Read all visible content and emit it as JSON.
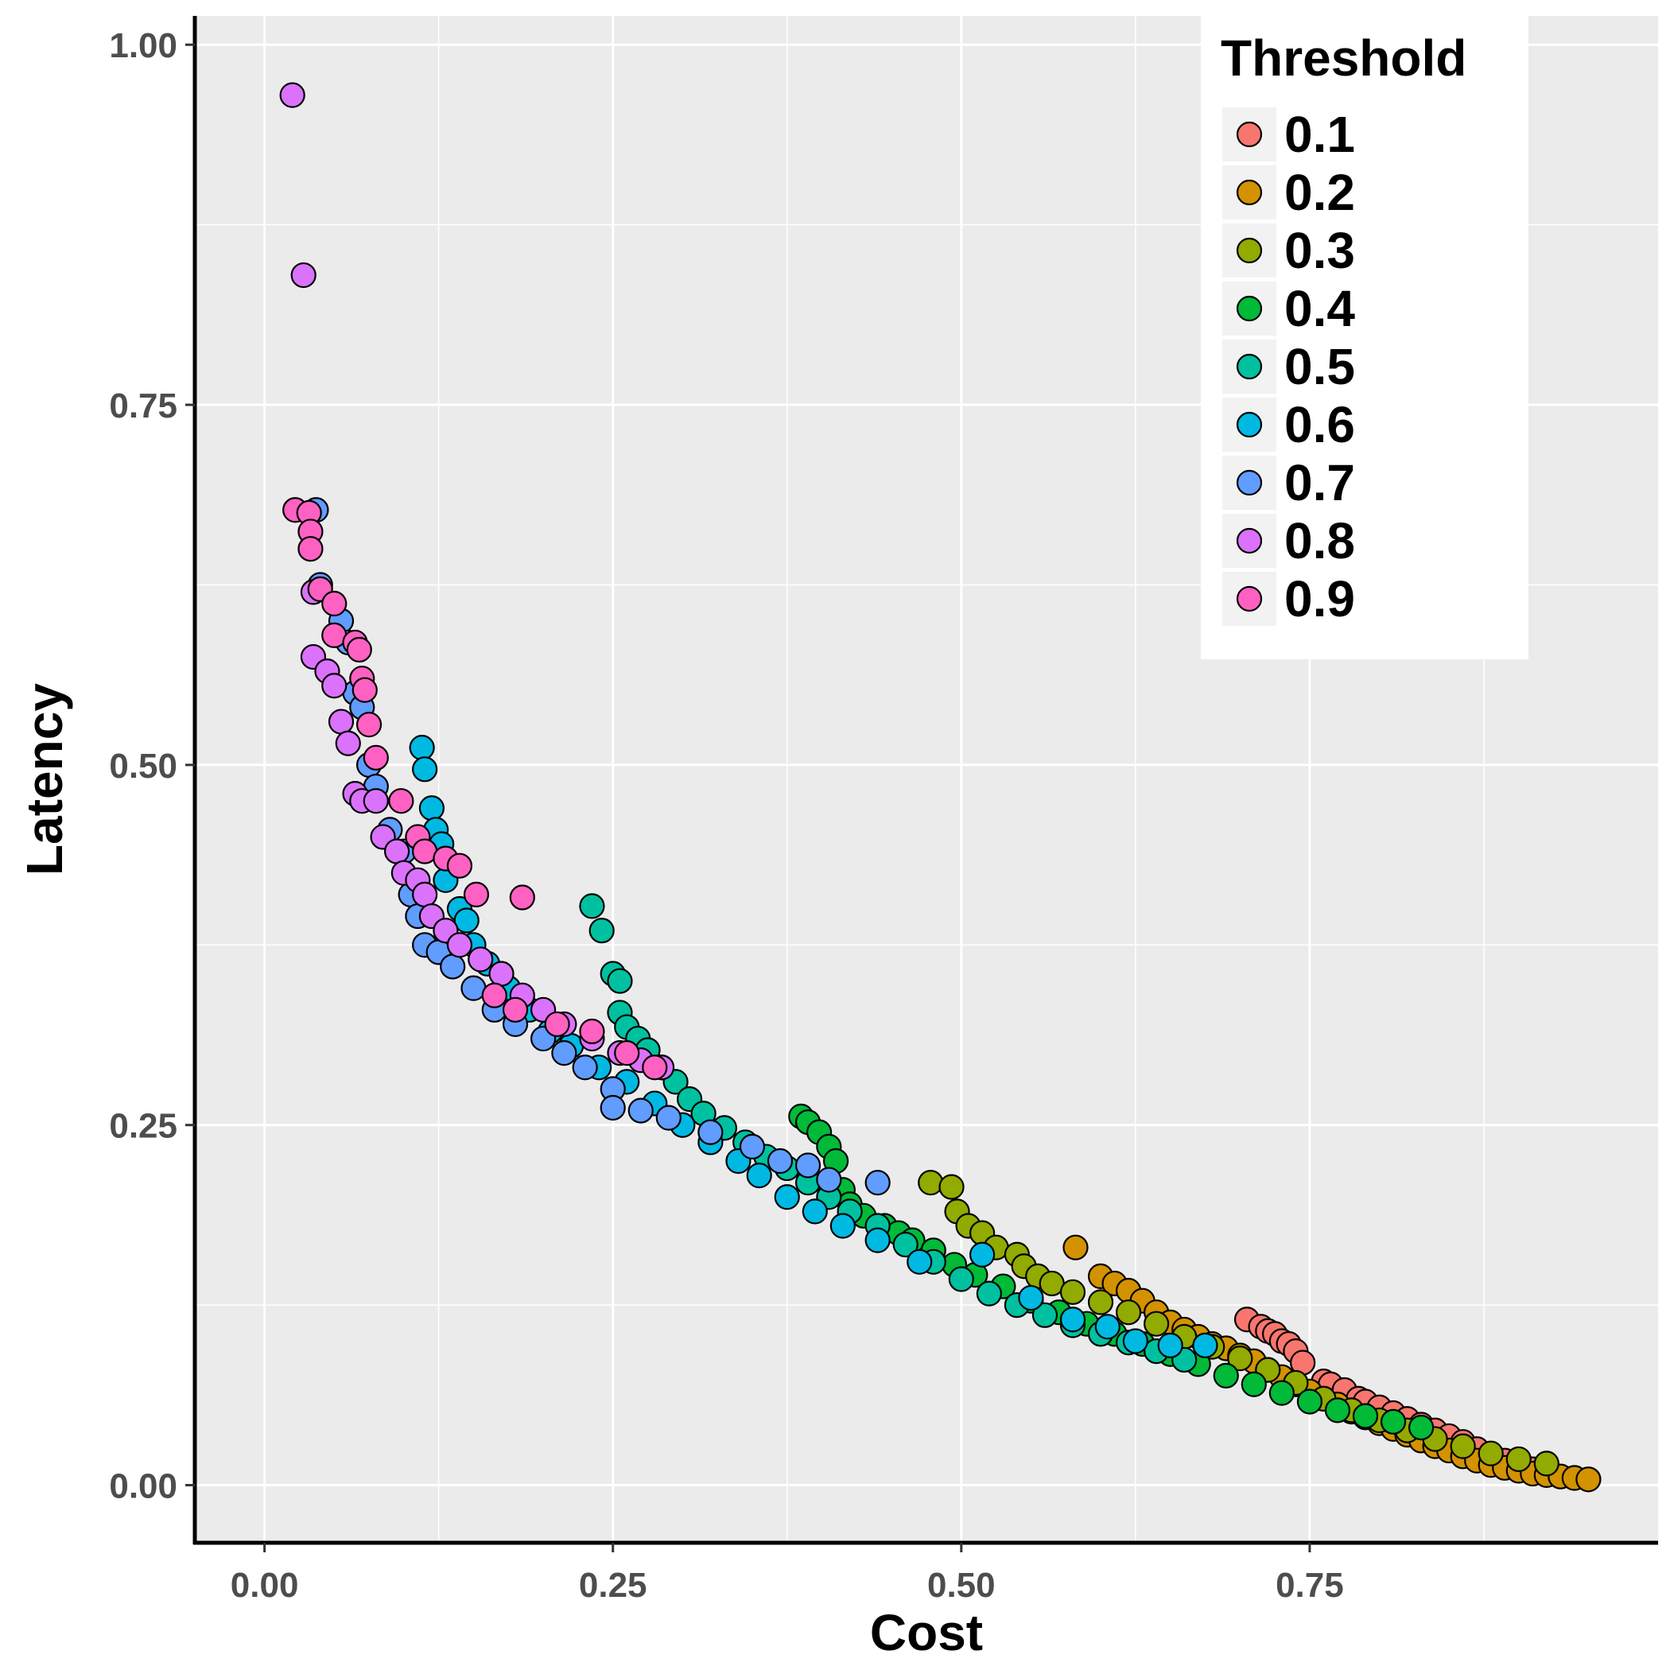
{
  "chart_data": {
    "type": "scatter",
    "xlabel": "Cost",
    "ylabel": "Latency",
    "xlim": [
      -0.05,
      1.0
    ],
    "ylim": [
      -0.04,
      1.02
    ],
    "x_ticks": [
      {
        "value": 0.0,
        "label": "0.00"
      },
      {
        "value": 0.25,
        "label": "0.25"
      },
      {
        "value": 0.5,
        "label": "0.50"
      },
      {
        "value": 0.75,
        "label": "0.75"
      }
    ],
    "y_ticks": [
      {
        "value": 0.0,
        "label": "0.00"
      },
      {
        "value": 0.25,
        "label": "0.25"
      },
      {
        "value": 0.5,
        "label": "0.50"
      },
      {
        "value": 0.75,
        "label": "0.75"
      },
      {
        "value": 1.0,
        "label": "1.00"
      }
    ],
    "grid": true,
    "legend": {
      "title": "Threshold",
      "position": "top-right"
    },
    "series": [
      {
        "name": "0.1",
        "color": "#F8766D",
        "points": [
          [
            0.705,
            0.115
          ],
          [
            0.715,
            0.11
          ],
          [
            0.72,
            0.107
          ],
          [
            0.725,
            0.105
          ],
          [
            0.73,
            0.1
          ],
          [
            0.735,
            0.098
          ],
          [
            0.74,
            0.093
          ],
          [
            0.745,
            0.085
          ],
          [
            0.76,
            0.072
          ],
          [
            0.765,
            0.07
          ],
          [
            0.775,
            0.066
          ],
          [
            0.785,
            0.06
          ],
          [
            0.79,
            0.058
          ],
          [
            0.8,
            0.054
          ],
          [
            0.81,
            0.05
          ],
          [
            0.82,
            0.046
          ],
          [
            0.83,
            0.042
          ],
          [
            0.84,
            0.038
          ],
          [
            0.85,
            0.034
          ],
          [
            0.86,
            0.03
          ],
          [
            0.87,
            0.025
          ],
          [
            0.88,
            0.021
          ],
          [
            0.89,
            0.017
          ],
          [
            0.9,
            0.014
          ],
          [
            0.91,
            0.011
          ],
          [
            0.92,
            0.008
          ],
          [
            0.93,
            0.006
          ],
          [
            0.94,
            0.005
          ],
          [
            0.95,
            0.004
          ]
        ]
      },
      {
        "name": "0.2",
        "color": "#D39200",
        "points": [
          [
            0.582,
            0.165
          ],
          [
            0.6,
            0.145
          ],
          [
            0.61,
            0.14
          ],
          [
            0.62,
            0.135
          ],
          [
            0.63,
            0.128
          ],
          [
            0.64,
            0.12
          ],
          [
            0.65,
            0.113
          ],
          [
            0.66,
            0.108
          ],
          [
            0.67,
            0.103
          ],
          [
            0.68,
            0.098
          ],
          [
            0.69,
            0.095
          ],
          [
            0.7,
            0.09
          ],
          [
            0.71,
            0.086
          ],
          [
            0.72,
            0.08
          ],
          [
            0.73,
            0.075
          ],
          [
            0.74,
            0.07
          ],
          [
            0.75,
            0.065
          ],
          [
            0.76,
            0.06
          ],
          [
            0.77,
            0.056
          ],
          [
            0.78,
            0.051
          ],
          [
            0.79,
            0.047
          ],
          [
            0.8,
            0.043
          ],
          [
            0.81,
            0.039
          ],
          [
            0.82,
            0.035
          ],
          [
            0.83,
            0.031
          ],
          [
            0.84,
            0.027
          ],
          [
            0.85,
            0.024
          ],
          [
            0.86,
            0.02
          ],
          [
            0.87,
            0.017
          ],
          [
            0.88,
            0.014
          ],
          [
            0.89,
            0.012
          ],
          [
            0.9,
            0.01
          ],
          [
            0.91,
            0.008
          ],
          [
            0.92,
            0.007
          ],
          [
            0.93,
            0.006
          ],
          [
            0.94,
            0.005
          ],
          [
            0.95,
            0.004
          ]
        ]
      },
      {
        "name": "0.3",
        "color": "#93AA00",
        "points": [
          [
            0.478,
            0.21
          ],
          [
            0.493,
            0.207
          ],
          [
            0.497,
            0.19
          ],
          [
            0.505,
            0.18
          ],
          [
            0.515,
            0.175
          ],
          [
            0.525,
            0.165
          ],
          [
            0.54,
            0.16
          ],
          [
            0.545,
            0.152
          ],
          [
            0.555,
            0.145
          ],
          [
            0.565,
            0.14
          ],
          [
            0.58,
            0.134
          ],
          [
            0.6,
            0.127
          ],
          [
            0.62,
            0.12
          ],
          [
            0.64,
            0.112
          ],
          [
            0.66,
            0.103
          ],
          [
            0.68,
            0.096
          ],
          [
            0.7,
            0.088
          ],
          [
            0.72,
            0.08
          ],
          [
            0.74,
            0.071
          ],
          [
            0.76,
            0.06
          ],
          [
            0.78,
            0.052
          ],
          [
            0.8,
            0.045
          ],
          [
            0.82,
            0.038
          ],
          [
            0.84,
            0.032
          ],
          [
            0.86,
            0.027
          ],
          [
            0.88,
            0.022
          ],
          [
            0.9,
            0.018
          ],
          [
            0.92,
            0.015
          ]
        ]
      },
      {
        "name": "0.4",
        "color": "#00BA38",
        "points": [
          [
            0.385,
            0.256
          ],
          [
            0.39,
            0.252
          ],
          [
            0.398,
            0.245
          ],
          [
            0.405,
            0.235
          ],
          [
            0.41,
            0.225
          ],
          [
            0.415,
            0.205
          ],
          [
            0.42,
            0.195
          ],
          [
            0.43,
            0.187
          ],
          [
            0.445,
            0.18
          ],
          [
            0.455,
            0.175
          ],
          [
            0.465,
            0.17
          ],
          [
            0.48,
            0.163
          ],
          [
            0.495,
            0.153
          ],
          [
            0.51,
            0.146
          ],
          [
            0.53,
            0.138
          ],
          [
            0.55,
            0.128
          ],
          [
            0.57,
            0.12
          ],
          [
            0.59,
            0.112
          ],
          [
            0.61,
            0.105
          ],
          [
            0.63,
            0.098
          ],
          [
            0.65,
            0.091
          ],
          [
            0.67,
            0.084
          ],
          [
            0.69,
            0.076
          ],
          [
            0.71,
            0.07
          ],
          [
            0.73,
            0.064
          ],
          [
            0.75,
            0.058
          ],
          [
            0.77,
            0.052
          ],
          [
            0.79,
            0.048
          ],
          [
            0.81,
            0.044
          ],
          [
            0.83,
            0.04
          ]
        ]
      },
      {
        "name": "0.5",
        "color": "#00C19F",
        "points": [
          [
            0.235,
            0.402
          ],
          [
            0.242,
            0.385
          ],
          [
            0.25,
            0.355
          ],
          [
            0.255,
            0.35
          ],
          [
            0.255,
            0.328
          ],
          [
            0.26,
            0.318
          ],
          [
            0.268,
            0.31
          ],
          [
            0.275,
            0.302
          ],
          [
            0.285,
            0.29
          ],
          [
            0.295,
            0.28
          ],
          [
            0.305,
            0.268
          ],
          [
            0.315,
            0.258
          ],
          [
            0.33,
            0.248
          ],
          [
            0.345,
            0.238
          ],
          [
            0.36,
            0.228
          ],
          [
            0.375,
            0.22
          ],
          [
            0.39,
            0.21
          ],
          [
            0.405,
            0.2
          ],
          [
            0.42,
            0.19
          ],
          [
            0.44,
            0.18
          ],
          [
            0.46,
            0.167
          ],
          [
            0.48,
            0.155
          ],
          [
            0.5,
            0.143
          ],
          [
            0.52,
            0.133
          ],
          [
            0.54,
            0.125
          ],
          [
            0.56,
            0.118
          ],
          [
            0.58,
            0.111
          ],
          [
            0.6,
            0.105
          ],
          [
            0.62,
            0.099
          ],
          [
            0.64,
            0.093
          ],
          [
            0.66,
            0.087
          ]
        ]
      },
      {
        "name": "0.6",
        "color": "#00B9E3",
        "points": [
          [
            0.113,
            0.512
          ],
          [
            0.115,
            0.497
          ],
          [
            0.12,
            0.47
          ],
          [
            0.123,
            0.455
          ],
          [
            0.127,
            0.445
          ],
          [
            0.13,
            0.42
          ],
          [
            0.14,
            0.4
          ],
          [
            0.145,
            0.392
          ],
          [
            0.15,
            0.375
          ],
          [
            0.16,
            0.362
          ],
          [
            0.175,
            0.345
          ],
          [
            0.19,
            0.33
          ],
          [
            0.205,
            0.315
          ],
          [
            0.22,
            0.305
          ],
          [
            0.24,
            0.29
          ],
          [
            0.26,
            0.28
          ],
          [
            0.28,
            0.265
          ],
          [
            0.3,
            0.25
          ],
          [
            0.32,
            0.238
          ],
          [
            0.34,
            0.225
          ],
          [
            0.355,
            0.215
          ],
          [
            0.375,
            0.2
          ],
          [
            0.395,
            0.19
          ],
          [
            0.415,
            0.18
          ],
          [
            0.44,
            0.17
          ],
          [
            0.47,
            0.155
          ],
          [
            0.515,
            0.16
          ],
          [
            0.55,
            0.13
          ],
          [
            0.58,
            0.115
          ],
          [
            0.605,
            0.11
          ],
          [
            0.625,
            0.1
          ],
          [
            0.65,
            0.097
          ],
          [
            0.675,
            0.097
          ]
        ]
      },
      {
        "name": "0.7",
        "color": "#619CFF",
        "points": [
          [
            0.037,
            0.677
          ],
          [
            0.04,
            0.625
          ],
          [
            0.055,
            0.6
          ],
          [
            0.06,
            0.585
          ],
          [
            0.065,
            0.55
          ],
          [
            0.07,
            0.54
          ],
          [
            0.075,
            0.5
          ],
          [
            0.08,
            0.485
          ],
          [
            0.09,
            0.455
          ],
          [
            0.1,
            0.44
          ],
          [
            0.105,
            0.41
          ],
          [
            0.11,
            0.395
          ],
          [
            0.115,
            0.375
          ],
          [
            0.125,
            0.37
          ],
          [
            0.135,
            0.36
          ],
          [
            0.15,
            0.345
          ],
          [
            0.165,
            0.33
          ],
          [
            0.18,
            0.32
          ],
          [
            0.2,
            0.31
          ],
          [
            0.215,
            0.3
          ],
          [
            0.23,
            0.29
          ],
          [
            0.25,
            0.275
          ],
          [
            0.25,
            0.262
          ],
          [
            0.27,
            0.26
          ],
          [
            0.29,
            0.255
          ],
          [
            0.32,
            0.245
          ],
          [
            0.35,
            0.235
          ],
          [
            0.37,
            0.225
          ],
          [
            0.39,
            0.222
          ],
          [
            0.405,
            0.212
          ],
          [
            0.44,
            0.21
          ]
        ]
      },
      {
        "name": "0.8",
        "color": "#DB72FB",
        "points": [
          [
            0.02,
            0.965
          ],
          [
            0.028,
            0.84
          ],
          [
            0.035,
            0.62
          ],
          [
            0.035,
            0.575
          ],
          [
            0.045,
            0.565
          ],
          [
            0.05,
            0.555
          ],
          [
            0.055,
            0.53
          ],
          [
            0.06,
            0.515
          ],
          [
            0.065,
            0.48
          ],
          [
            0.07,
            0.475
          ],
          [
            0.08,
            0.475
          ],
          [
            0.085,
            0.45
          ],
          [
            0.095,
            0.44
          ],
          [
            0.1,
            0.425
          ],
          [
            0.11,
            0.42
          ],
          [
            0.115,
            0.41
          ],
          [
            0.12,
            0.395
          ],
          [
            0.13,
            0.385
          ],
          [
            0.14,
            0.375
          ],
          [
            0.155,
            0.365
          ],
          [
            0.17,
            0.355
          ],
          [
            0.185,
            0.34
          ],
          [
            0.2,
            0.33
          ],
          [
            0.215,
            0.32
          ],
          [
            0.235,
            0.31
          ],
          [
            0.255,
            0.3
          ],
          [
            0.27,
            0.295
          ],
          [
            0.285,
            0.29
          ]
        ]
      },
      {
        "name": "0.9",
        "color": "#FF61C3",
        "points": [
          [
            0.022,
            0.677
          ],
          [
            0.032,
            0.675
          ],
          [
            0.033,
            0.662
          ],
          [
            0.033,
            0.65
          ],
          [
            0.04,
            0.622
          ],
          [
            0.05,
            0.612
          ],
          [
            0.05,
            0.59
          ],
          [
            0.065,
            0.585
          ],
          [
            0.068,
            0.58
          ],
          [
            0.07,
            0.56
          ],
          [
            0.072,
            0.552
          ],
          [
            0.075,
            0.528
          ],
          [
            0.08,
            0.505
          ],
          [
            0.098,
            0.475
          ],
          [
            0.11,
            0.45
          ],
          [
            0.115,
            0.44
          ],
          [
            0.13,
            0.435
          ],
          [
            0.14,
            0.43
          ],
          [
            0.152,
            0.41
          ],
          [
            0.185,
            0.408
          ],
          [
            0.165,
            0.34
          ],
          [
            0.18,
            0.33
          ],
          [
            0.21,
            0.32
          ],
          [
            0.235,
            0.315
          ],
          [
            0.26,
            0.3
          ],
          [
            0.28,
            0.29
          ]
        ]
      }
    ]
  }
}
